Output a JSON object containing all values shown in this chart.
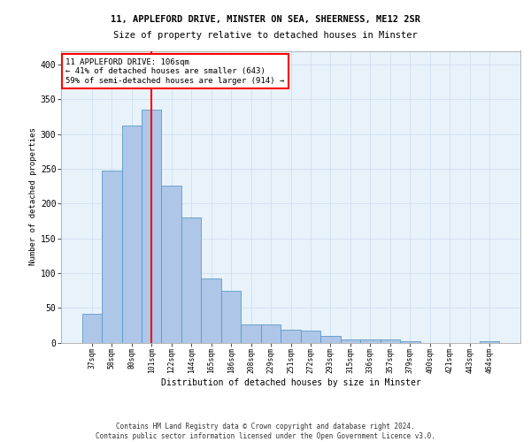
{
  "title_line1": "11, APPLEFORD DRIVE, MINSTER ON SEA, SHEERNESS, ME12 2SR",
  "title_line2": "Size of property relative to detached houses in Minster",
  "xlabel": "Distribution of detached houses by size in Minster",
  "ylabel": "Number of detached properties",
  "footer_line1": "Contains HM Land Registry data © Crown copyright and database right 2024.",
  "footer_line2": "Contains public sector information licensed under the Open Government Licence v3.0.",
  "bar_labels": [
    "37sqm",
    "58sqm",
    "80sqm",
    "101sqm",
    "122sqm",
    "144sqm",
    "165sqm",
    "186sqm",
    "208sqm",
    "229sqm",
    "251sqm",
    "272sqm",
    "293sqm",
    "315sqm",
    "336sqm",
    "357sqm",
    "379sqm",
    "400sqm",
    "421sqm",
    "443sqm",
    "464sqm"
  ],
  "bar_values": [
    42,
    247,
    312,
    335,
    226,
    180,
    92,
    74,
    26,
    26,
    18,
    17,
    10,
    4,
    5,
    4,
    2,
    0,
    0,
    0,
    2
  ],
  "bar_color": "#aec6e8",
  "bar_edge_color": "#5a9ac8",
  "vline_color": "red",
  "vline_x_index": 3,
  "annotation_line1": "11 APPLEFORD DRIVE: 106sqm",
  "annotation_line2": "← 41% of detached houses are smaller (643)",
  "annotation_line3": "59% of semi-detached houses are larger (914) →",
  "ylim": [
    0,
    420
  ],
  "yticks": [
    0,
    50,
    100,
    150,
    200,
    250,
    300,
    350,
    400
  ],
  "grid_color": "#cfe0f0",
  "bg_color": "#e8f2fb"
}
